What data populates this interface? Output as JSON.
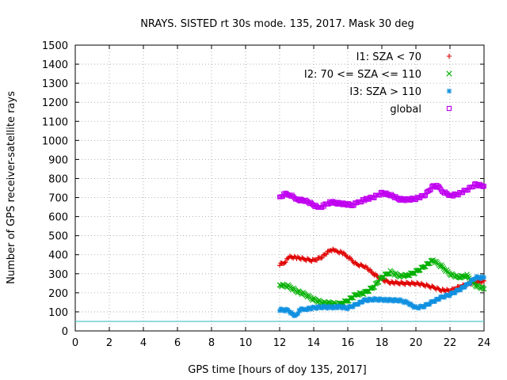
{
  "chart_data": {
    "type": "scatter",
    "title": "NRAYS. SISTED rt 30s mode. 135, 2017. Mask 30 deg",
    "xlabel": "GPS time [hours of doy 135, 2017]",
    "ylabel": "Number of GPS receiver-satellite rays",
    "xlim": [
      0,
      24
    ],
    "ylim": [
      0,
      1500
    ],
    "xticks": [
      "0",
      "2",
      "4",
      "6",
      "8",
      "10",
      "12",
      "14",
      "16",
      "18",
      "20",
      "22",
      "24"
    ],
    "yticks": [
      "0",
      "100",
      "200",
      "300",
      "400",
      "500",
      "600",
      "700",
      "800",
      "900",
      "1000",
      "1100",
      "1200",
      "1300",
      "1400",
      "1500"
    ],
    "grid": true,
    "legend_position": "top-right",
    "threshold_line": {
      "value": 50,
      "color": "#4fc8c8"
    },
    "series": [
      {
        "name": "I1: SZA < 70",
        "marker": "+",
        "color": "#e00000",
        "points": [
          [
            12.0,
            350
          ],
          [
            12.3,
            360
          ],
          [
            12.6,
            390
          ],
          [
            13.0,
            385
          ],
          [
            13.5,
            375
          ],
          [
            14.0,
            370
          ],
          [
            14.5,
            390
          ],
          [
            15.0,
            425
          ],
          [
            15.3,
            420
          ],
          [
            15.7,
            410
          ],
          [
            16.0,
            390
          ],
          [
            16.5,
            350
          ],
          [
            17.0,
            340
          ],
          [
            17.5,
            300
          ],
          [
            18.0,
            270
          ],
          [
            18.5,
            255
          ],
          [
            19.0,
            250
          ],
          [
            19.5,
            250
          ],
          [
            20.0,
            250
          ],
          [
            20.5,
            240
          ],
          [
            21.0,
            230
          ],
          [
            21.5,
            215
          ],
          [
            22.0,
            210
          ],
          [
            22.5,
            230
          ],
          [
            23.0,
            245
          ],
          [
            23.5,
            255
          ],
          [
            24.0,
            262
          ]
        ]
      },
      {
        "name": "I2: 70 <= SZA <= 110",
        "marker": "x",
        "color": "#00b000",
        "points": [
          [
            12.0,
            240
          ],
          [
            12.5,
            235
          ],
          [
            13.0,
            210
          ],
          [
            13.5,
            190
          ],
          [
            14.0,
            165
          ],
          [
            14.5,
            150
          ],
          [
            15.0,
            145
          ],
          [
            15.5,
            140
          ],
          [
            16.0,
            160
          ],
          [
            16.5,
            190
          ],
          [
            17.0,
            200
          ],
          [
            17.5,
            230
          ],
          [
            18.0,
            280
          ],
          [
            18.5,
            310
          ],
          [
            19.0,
            290
          ],
          [
            19.5,
            290
          ],
          [
            20.0,
            310
          ],
          [
            20.5,
            340
          ],
          [
            21.0,
            370
          ],
          [
            21.5,
            340
          ],
          [
            22.0,
            300
          ],
          [
            22.5,
            280
          ],
          [
            23.0,
            290
          ],
          [
            23.5,
            240
          ],
          [
            24.0,
            220
          ]
        ]
      },
      {
        "name": "I3: SZA > 110",
        "marker": "*",
        "color": "#1090e0",
        "points": [
          [
            12.0,
            110
          ],
          [
            12.5,
            110
          ],
          [
            12.9,
            75
          ],
          [
            13.2,
            110
          ],
          [
            13.5,
            115
          ],
          [
            14.0,
            120
          ],
          [
            14.5,
            125
          ],
          [
            15.0,
            125
          ],
          [
            15.5,
            125
          ],
          [
            16.0,
            120
          ],
          [
            16.5,
            140
          ],
          [
            17.0,
            160
          ],
          [
            17.5,
            165
          ],
          [
            18.0,
            165
          ],
          [
            18.5,
            160
          ],
          [
            19.0,
            160
          ],
          [
            19.5,
            150
          ],
          [
            20.0,
            120
          ],
          [
            20.5,
            130
          ],
          [
            21.0,
            155
          ],
          [
            21.5,
            175
          ],
          [
            22.0,
            190
          ],
          [
            22.5,
            215
          ],
          [
            23.0,
            240
          ],
          [
            23.5,
            280
          ],
          [
            24.0,
            280
          ]
        ]
      },
      {
        "name": "global",
        "marker": "square",
        "color": "#c000f0",
        "points": [
          [
            12.0,
            700
          ],
          [
            12.3,
            720
          ],
          [
            12.6,
            715
          ],
          [
            13.0,
            690
          ],
          [
            13.5,
            685
          ],
          [
            14.0,
            660
          ],
          [
            14.3,
            645
          ],
          [
            14.6,
            660
          ],
          [
            15.0,
            675
          ],
          [
            15.5,
            670
          ],
          [
            16.0,
            665
          ],
          [
            16.3,
            660
          ],
          [
            16.6,
            675
          ],
          [
            17.0,
            690
          ],
          [
            17.5,
            700
          ],
          [
            18.0,
            725
          ],
          [
            18.5,
            715
          ],
          [
            19.0,
            690
          ],
          [
            19.5,
            690
          ],
          [
            20.0,
            695
          ],
          [
            20.5,
            710
          ],
          [
            21.0,
            760
          ],
          [
            21.3,
            760
          ],
          [
            21.6,
            730
          ],
          [
            22.0,
            710
          ],
          [
            22.5,
            720
          ],
          [
            23.0,
            740
          ],
          [
            23.5,
            770
          ],
          [
            24.0,
            760
          ]
        ]
      }
    ]
  }
}
